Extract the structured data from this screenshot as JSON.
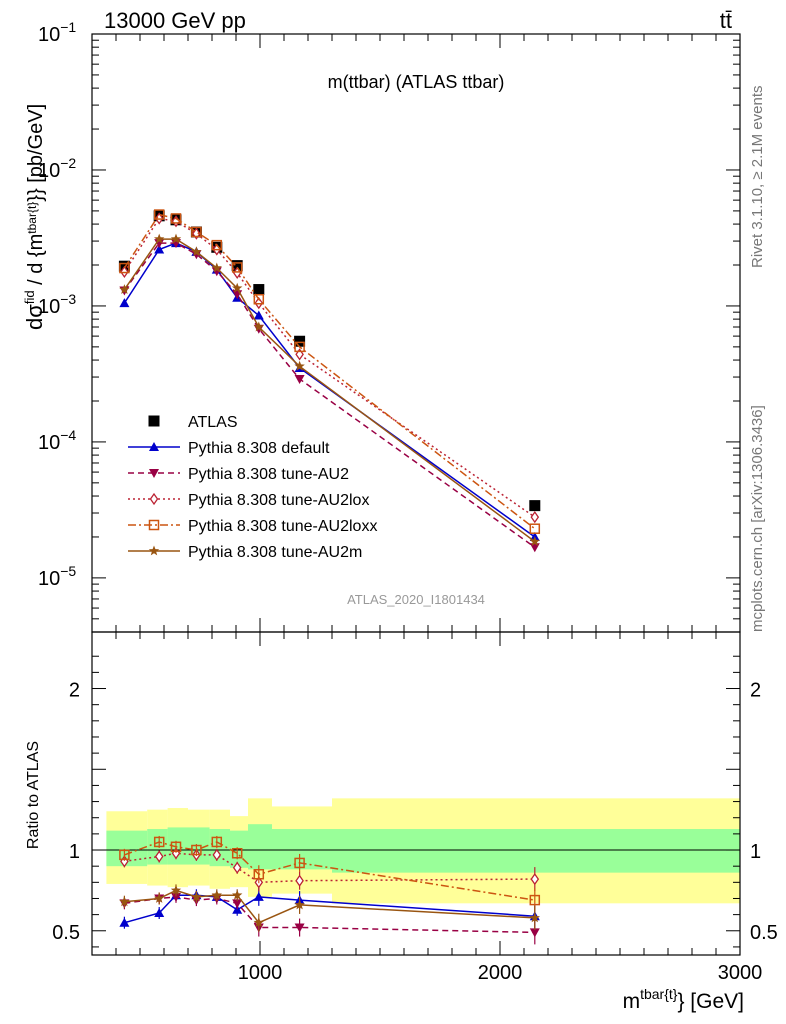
{
  "header": {
    "left": "13000 GeV pp",
    "right": "tt̄"
  },
  "side_labels": {
    "rivet": "Rivet 3.1.10, ≥ 2.1M events",
    "mcplots": "mcplots.cern.ch [arXiv:1306.3436]"
  },
  "chart_data": [
    {
      "type": "scatter",
      "panel": "main",
      "title": "m(ttbar) (ATLAS ttbar)",
      "watermark": "ATLAS_2020_I1801434",
      "ylabel": "d σ^fid / d {m^tbar{t}} [pb/GeV]",
      "yscale": "log",
      "ylim": [
        4e-06,
        0.1
      ],
      "xlim": [
        300,
        3000
      ],
      "yticks": [
        {
          "label": "10",
          "exp": "−1",
          "value": 0.1
        },
        {
          "label": "10",
          "exp": "−2",
          "value": 0.01
        },
        {
          "label": "10",
          "exp": "−3",
          "value": 0.001
        },
        {
          "label": "10",
          "exp": "−4",
          "value": 0.0001
        },
        {
          "label": "10",
          "exp": "−5",
          "value": 1e-05
        }
      ],
      "legend_position": "lower-left",
      "series": [
        {
          "name": "ATLAS",
          "color": "#000000",
          "style": "data",
          "x": [
            435,
            580,
            650,
            735,
            820,
            905,
            995,
            1165,
            2145
          ],
          "y": [
            0.00196,
            0.0046,
            0.0043,
            0.0035,
            0.0027,
            0.00198,
            0.00132,
            0.00055,
            3.4e-05
          ]
        },
        {
          "name": "Pythia 8.308 default",
          "color": "#0000cc",
          "style": "solid",
          "marker": "triangle-up",
          "x": [
            435,
            580,
            650,
            735,
            820,
            905,
            995,
            1165,
            2145
          ],
          "y": [
            0.00105,
            0.0026,
            0.0029,
            0.0025,
            0.00185,
            0.00115,
            0.00085,
            0.00035,
            2e-05
          ]
        },
        {
          "name": "Pythia 8.308 tune-AU2",
          "color": "#990044",
          "style": "dashed",
          "marker": "triangle-down",
          "x": [
            435,
            580,
            650,
            735,
            820,
            905,
            995,
            1165,
            2145
          ],
          "y": [
            0.0013,
            0.0029,
            0.0029,
            0.0024,
            0.0018,
            0.00122,
            0.00068,
            0.00029,
            1.68e-05
          ]
        },
        {
          "name": "Pythia 8.308 tune-AU2lox",
          "color": "#bb2233",
          "style": "dotted",
          "marker": "diamond-open",
          "x": [
            435,
            580,
            650,
            735,
            820,
            905,
            995,
            1165,
            2145
          ],
          "y": [
            0.00178,
            0.0044,
            0.0042,
            0.0034,
            0.0026,
            0.00175,
            0.00105,
            0.00044,
            2.8e-05
          ]
        },
        {
          "name": "Pythia 8.308 tune-AU2loxx",
          "color": "#cc5511",
          "style": "dashdot",
          "marker": "square-open",
          "x": [
            435,
            580,
            650,
            735,
            820,
            905,
            995,
            1165,
            2145
          ],
          "y": [
            0.0019,
            0.0047,
            0.0044,
            0.0035,
            0.0028,
            0.00192,
            0.00112,
            0.0005,
            2.3e-05
          ]
        },
        {
          "name": "Pythia 8.308 tune-AU2m",
          "color": "#995511",
          "style": "solid",
          "marker": "star",
          "x": [
            435,
            580,
            650,
            735,
            820,
            905,
            995,
            1165,
            2145
          ],
          "y": [
            0.00132,
            0.0031,
            0.0031,
            0.0025,
            0.0019,
            0.00135,
            0.0007,
            0.00036,
            1.85e-05
          ]
        }
      ]
    },
    {
      "type": "scatter",
      "panel": "ratio",
      "ylabel": "Ratio to ATLAS",
      "xlabel": "m^tbar{t}} [GeV]",
      "ylim": [
        0.35,
        2.35
      ],
      "xlim": [
        300,
        3000
      ],
      "yticks": [
        0.5,
        1,
        2
      ],
      "xticks": [
        1000,
        2000,
        3000
      ],
      "bands": [
        {
          "x0": 360,
          "x1": 530,
          "inner": [
            0.9,
            1.12
          ],
          "outer": [
            0.79,
            1.24
          ]
        },
        {
          "x0": 530,
          "x1": 615,
          "inner": [
            0.91,
            1.13
          ],
          "outer": [
            0.78,
            1.25
          ]
        },
        {
          "x0": 615,
          "x1": 700,
          "inner": [
            0.91,
            1.14
          ],
          "outer": [
            0.77,
            1.26
          ]
        },
        {
          "x0": 700,
          "x1": 790,
          "inner": [
            0.91,
            1.14
          ],
          "outer": [
            0.78,
            1.25
          ]
        },
        {
          "x0": 790,
          "x1": 875,
          "inner": [
            0.9,
            1.13
          ],
          "outer": [
            0.76,
            1.25
          ]
        },
        {
          "x0": 875,
          "x1": 950,
          "inner": [
            0.89,
            1.12
          ],
          "outer": [
            0.77,
            1.21
          ]
        },
        {
          "x0": 950,
          "x1": 1050,
          "inner": [
            0.88,
            1.16
          ],
          "outer": [
            0.71,
            1.32
          ]
        },
        {
          "x0": 1050,
          "x1": 1300,
          "inner": [
            0.88,
            1.13
          ],
          "outer": [
            0.73,
            1.27
          ]
        },
        {
          "x0": 1300,
          "x1": 3000,
          "inner": [
            0.86,
            1.13
          ],
          "outer": [
            0.67,
            1.32
          ]
        }
      ],
      "series": [
        {
          "name": "Pythia 8.308 default",
          "color": "#0000cc",
          "style": "solid",
          "marker": "triangle-up",
          "x": [
            435,
            580,
            650,
            735,
            820,
            905,
            995,
            1165,
            2145
          ],
          "y": [
            0.55,
            0.61,
            0.72,
            0.72,
            0.71,
            0.63,
            0.71,
            0.69,
            0.59
          ]
        },
        {
          "name": "Pythia 8.308 tune-AU2",
          "color": "#990044",
          "style": "dashed",
          "marker": "triangle-down",
          "x": [
            435,
            580,
            650,
            735,
            820,
            905,
            995,
            1165,
            2145
          ],
          "y": [
            0.67,
            0.7,
            0.71,
            0.69,
            0.7,
            0.67,
            0.52,
            0.52,
            0.49
          ]
        },
        {
          "name": "Pythia 8.308 tune-AU2lox",
          "color": "#bb2233",
          "style": "dotted",
          "marker": "diamond-open",
          "x": [
            435,
            580,
            650,
            735,
            820,
            905,
            995,
            1165,
            2145
          ],
          "y": [
            0.93,
            0.96,
            0.98,
            0.97,
            0.97,
            0.89,
            0.8,
            0.81,
            0.82
          ]
        },
        {
          "name": "Pythia 8.308 tune-AU2loxx",
          "color": "#cc5511",
          "style": "dashdot",
          "marker": "square-open",
          "x": [
            435,
            580,
            650,
            735,
            820,
            905,
            995,
            1165,
            2145
          ],
          "y": [
            0.97,
            1.05,
            1.02,
            1.0,
            1.05,
            0.98,
            0.85,
            0.92,
            0.69
          ]
        },
        {
          "name": "Pythia 8.308 tune-AU2m",
          "color": "#995511",
          "style": "solid",
          "marker": "star",
          "x": [
            435,
            580,
            650,
            735,
            820,
            905,
            995,
            1165,
            2145
          ],
          "y": [
            0.68,
            0.7,
            0.75,
            0.71,
            0.72,
            0.72,
            0.55,
            0.66,
            0.58
          ]
        }
      ]
    }
  ]
}
